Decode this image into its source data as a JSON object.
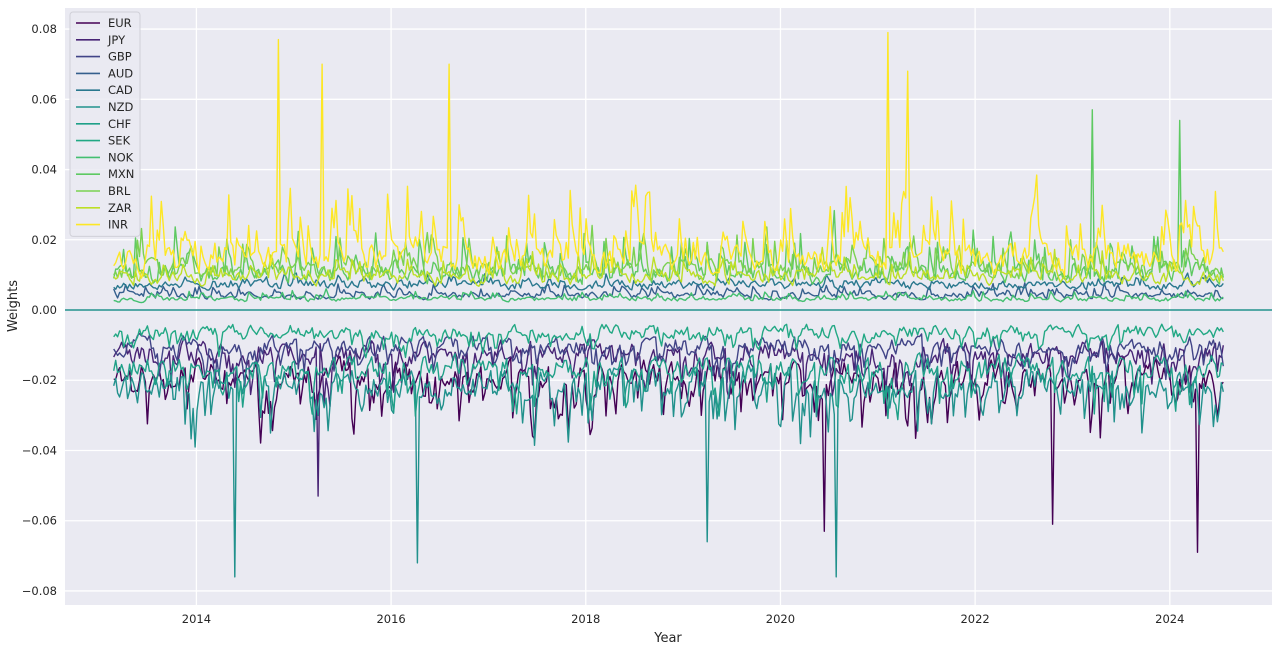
{
  "chart_data": {
    "type": "line",
    "xlabel": "Year",
    "ylabel": "Weights",
    "xlim": [
      2012.65,
      2025.05
    ],
    "ylim": [
      -0.084,
      0.086
    ],
    "x_ticks": [
      2014,
      2016,
      2018,
      2020,
      2022,
      2024
    ],
    "x_tick_labels": [
      "2014",
      "2016",
      "2018",
      "2020",
      "2022",
      "2024"
    ],
    "y_ticks": [
      -0.08,
      -0.06,
      -0.04,
      -0.02,
      0.0,
      0.02,
      0.04,
      0.06,
      0.08
    ],
    "y_tick_labels": [
      "−0.08",
      "−0.06",
      "−0.04",
      "−0.02",
      "0.00",
      "0.02",
      "0.04",
      "0.06",
      "0.08"
    ],
    "grid": true,
    "legend_position": "top-left",
    "x_range": [
      2013.15,
      2024.55
    ],
    "points_per_series": 560,
    "series": [
      {
        "name": "EUR",
        "color": "#440154",
        "base": -0.018,
        "amp": 0.006,
        "spike": 0.022,
        "spike_dir": -1,
        "seed": 11,
        "extremes": [
          [
            2020.45,
            -0.063
          ],
          [
            2022.8,
            -0.061
          ],
          [
            2024.28,
            -0.069
          ]
        ]
      },
      {
        "name": "JPY",
        "color": "#482475",
        "base": -0.012,
        "amp": 0.005,
        "spike": 0.016,
        "spike_dir": -1,
        "seed": 23,
        "extremes": [
          [
            2015.25,
            -0.053
          ]
        ]
      },
      {
        "name": "GBP",
        "color": "#414487",
        "base": -0.01,
        "amp": 0.004,
        "spike": 0.012,
        "spike_dir": -1,
        "seed": 37,
        "extremes": []
      },
      {
        "name": "AUD",
        "color": "#355f8d",
        "base": 0.004,
        "amp": 0.0015,
        "spike": 0.004,
        "spike_dir": 1,
        "seed": 41,
        "extremes": []
      },
      {
        "name": "CAD",
        "color": "#2a788e",
        "base": 0.007,
        "amp": 0.002,
        "spike": 0.004,
        "spike_dir": 1,
        "seed": 53,
        "extremes": []
      },
      {
        "name": "NZD",
        "color": "#21918c",
        "base": -0.02,
        "amp": 0.006,
        "spike": 0.022,
        "spike_dir": -1,
        "seed": 67,
        "extremes": [
          [
            2014.4,
            -0.076
          ],
          [
            2016.27,
            -0.072
          ],
          [
            2020.58,
            -0.076
          ],
          [
            2019.25,
            -0.066
          ]
        ]
      },
      {
        "name": "CHF",
        "color": "#1fa088",
        "base": -0.016,
        "amp": 0.005,
        "spike": 0.018,
        "spike_dir": -1,
        "seed": 79,
        "extremes": []
      },
      {
        "name": "SEK",
        "color": "#22a884",
        "base": -0.006,
        "amp": 0.003,
        "spike": 0.008,
        "spike_dir": -1,
        "seed": 83,
        "extremes": []
      },
      {
        "name": "NOK",
        "color": "#44bf70",
        "base": 0.003,
        "amp": 0.001,
        "spike": 0.003,
        "spike_dir": 1,
        "seed": 97,
        "extremes": []
      },
      {
        "name": "MXN",
        "color": "#5ec962",
        "base": 0.01,
        "amp": 0.004,
        "spike": 0.018,
        "spike_dir": 1,
        "seed": 101,
        "extremes": [
          [
            2023.2,
            0.057
          ],
          [
            2024.1,
            0.054
          ]
        ]
      },
      {
        "name": "BRL",
        "color": "#7ad151",
        "base": 0.011,
        "amp": 0.004,
        "spike": 0.014,
        "spike_dir": 1,
        "seed": 113,
        "extremes": []
      },
      {
        "name": "ZAR",
        "color": "#bddf26",
        "base": 0.009,
        "amp": 0.003,
        "spike": 0.01,
        "spike_dir": 1,
        "seed": 127,
        "extremes": []
      },
      {
        "name": "INR",
        "color": "#fde725",
        "base": 0.014,
        "amp": 0.006,
        "spike": 0.03,
        "spike_dir": 1,
        "seed": 131,
        "extremes": [
          [
            2014.85,
            0.077
          ],
          [
            2015.3,
            0.07
          ],
          [
            2016.6,
            0.07
          ],
          [
            2021.1,
            0.079
          ],
          [
            2021.3,
            0.068
          ]
        ]
      }
    ]
  }
}
